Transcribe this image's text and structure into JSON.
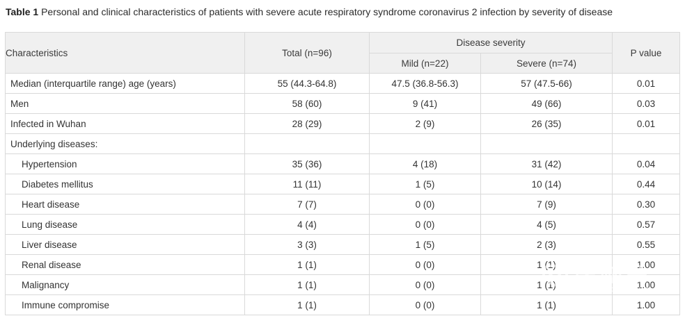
{
  "title": {
    "label": "Table 1",
    "text": "Personal and clinical characteristics of patients with severe acute respiratory syndrome coronavirus 2 infection by severity of disease"
  },
  "table": {
    "headers": {
      "characteristics": "Characteristics",
      "total": "Total (n=96)",
      "disease_severity": "Disease severity",
      "mild": "Mild (n=22)",
      "severe": "Severe (n=74)",
      "p_value": "P value"
    },
    "rows": [
      {
        "label": "Median (interquartile range) age (years)",
        "indent": false,
        "total": "55 (44.3-64.8)",
        "mild": "47.5 (36.8-56.3)",
        "severe": "57 (47.5-66)",
        "p": "0.01"
      },
      {
        "label": "Men",
        "indent": false,
        "total": "58 (60)",
        "mild": "9 (41)",
        "severe": "49 (66)",
        "p": "0.03"
      },
      {
        "label": "Infected in Wuhan",
        "indent": false,
        "total": "28 (29)",
        "mild": "2 (9)",
        "severe": "26 (35)",
        "p": "0.01"
      },
      {
        "label": "Underlying diseases:",
        "indent": false,
        "total": "",
        "mild": "",
        "severe": "",
        "p": ""
      },
      {
        "label": "Hypertension",
        "indent": true,
        "total": "35 (36)",
        "mild": "4 (18)",
        "severe": "31 (42)",
        "p": "0.04"
      },
      {
        "label": "Diabetes mellitus",
        "indent": true,
        "total": "11 (11)",
        "mild": "1 (5)",
        "severe": "10 (14)",
        "p": "0.44"
      },
      {
        "label": "Heart disease",
        "indent": true,
        "total": "7 (7)",
        "mild": "0 (0)",
        "severe": "7 (9)",
        "p": "0.30"
      },
      {
        "label": "Lung disease",
        "indent": true,
        "total": "4 (4)",
        "mild": "0 (0)",
        "severe": "4 (5)",
        "p": "0.57"
      },
      {
        "label": "Liver disease",
        "indent": true,
        "total": "3 (3)",
        "mild": "1 (5)",
        "severe": "2 (3)",
        "p": "0.55"
      },
      {
        "label": "Renal disease",
        "indent": true,
        "total": "1 (1)",
        "mild": "0 (0)",
        "severe": "1 (1)",
        "p": "1.00"
      },
      {
        "label": "Malignancy",
        "indent": true,
        "total": "1 (1)",
        "mild": "0 (0)",
        "severe": "1 (1)",
        "p": "1.00"
      },
      {
        "label": "Immune compromise",
        "indent": true,
        "total": "1 (1)",
        "mild": "0 (0)",
        "severe": "1 (1)",
        "p": "1.00"
      }
    ]
  },
  "watermark": {
    "cn": "医咖会",
    "en": "MEDIECO GROUP"
  },
  "colors": {
    "header_bg": "#f0f0f0",
    "border": "#d9d9d9",
    "text": "#333333"
  }
}
